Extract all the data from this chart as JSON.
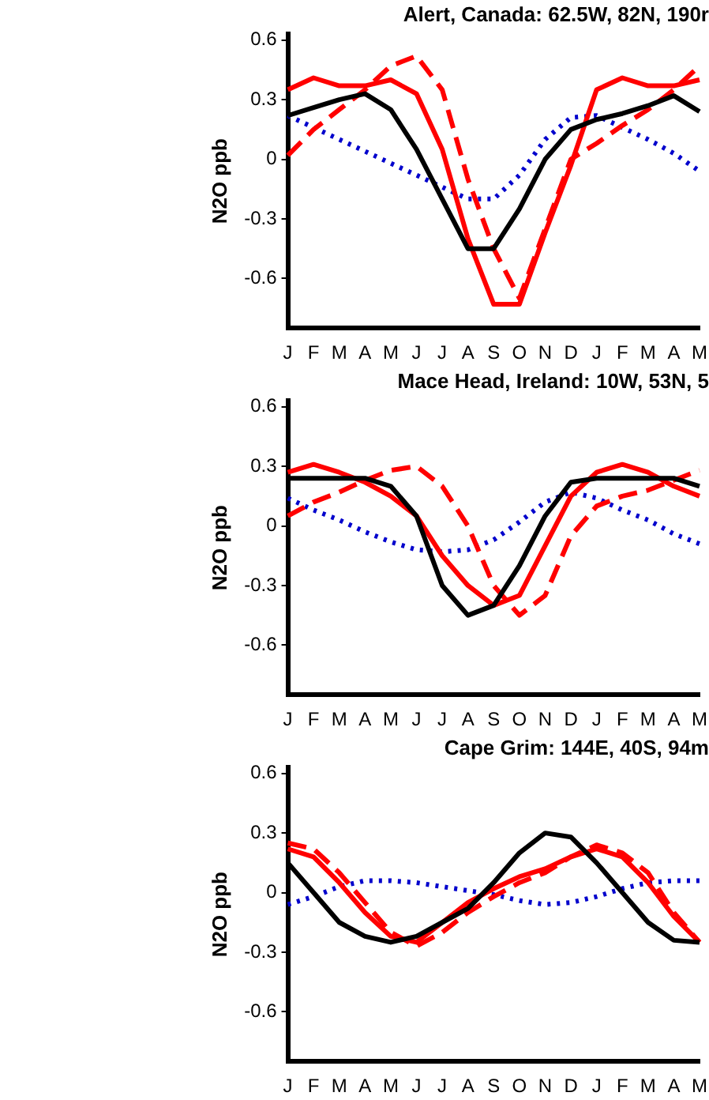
{
  "chart_data": [
    {
      "type": "line",
      "title": "Alert, Canada: 62.5W, 82N, 190r",
      "ylabel": "N2O ppb",
      "categories": [
        "J",
        "F",
        "M",
        "A",
        "M",
        "J",
        "J",
        "A",
        "S",
        "O",
        "N",
        "D",
        "J",
        "F",
        "M",
        "A",
        "M"
      ],
      "ylim": [
        -0.85,
        0.63
      ],
      "yticks": [
        0.6,
        0.3,
        0,
        -0.3,
        -0.6
      ],
      "grid": false,
      "legend": false,
      "marker": "none",
      "series": [
        {
          "color": "#000000",
          "line_style": "solid",
          "values": [
            0.22,
            0.26,
            0.3,
            0.33,
            0.25,
            0.05,
            -0.2,
            -0.45,
            -0.45,
            -0.25,
            0.0,
            0.15,
            0.2,
            0.23,
            0.27,
            0.32,
            0.24
          ]
        },
        {
          "color": "#ff0000",
          "line_style": "solid",
          "values": [
            0.35,
            0.41,
            0.37,
            0.37,
            0.4,
            0.33,
            0.05,
            -0.4,
            -0.73,
            -0.73,
            -0.37,
            -0.03,
            0.35,
            0.41,
            0.37,
            0.37,
            0.4
          ]
        },
        {
          "color": "#ff0000",
          "line_style": "dashed",
          "values": [
            0.02,
            0.15,
            0.25,
            0.35,
            0.47,
            0.52,
            0.35,
            -0.1,
            -0.45,
            -0.7,
            -0.35,
            0.0,
            0.08,
            0.17,
            0.25,
            0.35,
            0.47
          ]
        },
        {
          "color": "#0000cc",
          "line_style": "dotted",
          "values": [
            0.22,
            0.16,
            0.1,
            0.04,
            -0.02,
            -0.08,
            -0.14,
            -0.2,
            -0.2,
            -0.08,
            0.1,
            0.21,
            0.22,
            0.16,
            0.1,
            0.03,
            -0.06
          ]
        }
      ]
    },
    {
      "type": "line",
      "title": "Mace Head, Ireland: 10W, 53N, 5",
      "ylabel": "N2O ppb",
      "categories": [
        "J",
        "F",
        "M",
        "A",
        "M",
        "J",
        "J",
        "A",
        "S",
        "O",
        "N",
        "D",
        "J",
        "F",
        "M",
        "A",
        "M"
      ],
      "ylim": [
        -0.85,
        0.63
      ],
      "yticks": [
        0.6,
        0.3,
        0,
        -0.3,
        -0.6
      ],
      "grid": false,
      "legend": false,
      "marker": "none",
      "series": [
        {
          "color": "#000000",
          "line_style": "solid",
          "values": [
            0.24,
            0.24,
            0.24,
            0.24,
            0.2,
            0.05,
            -0.3,
            -0.45,
            -0.4,
            -0.2,
            0.05,
            0.22,
            0.24,
            0.24,
            0.24,
            0.24,
            0.2
          ]
        },
        {
          "color": "#ff0000",
          "line_style": "solid",
          "values": [
            0.27,
            0.31,
            0.27,
            0.22,
            0.15,
            0.05,
            -0.15,
            -0.3,
            -0.4,
            -0.35,
            -0.1,
            0.15,
            0.27,
            0.31,
            0.27,
            0.2,
            0.15
          ]
        },
        {
          "color": "#ff0000",
          "line_style": "dashed",
          "values": [
            0.05,
            0.12,
            0.17,
            0.23,
            0.28,
            0.3,
            0.2,
            0.0,
            -0.3,
            -0.45,
            -0.35,
            -0.05,
            0.1,
            0.15,
            0.18,
            0.23,
            0.28
          ]
        },
        {
          "color": "#0000cc",
          "line_style": "dotted",
          "values": [
            0.14,
            0.08,
            0.03,
            -0.03,
            -0.08,
            -0.12,
            -0.13,
            -0.12,
            -0.07,
            0.02,
            0.12,
            0.17,
            0.14,
            0.08,
            0.03,
            -0.04,
            -0.09
          ]
        }
      ]
    },
    {
      "type": "line",
      "title": "Cape Grim: 144E, 40S, 94m",
      "ylabel": "N2O ppb",
      "categories": [
        "J",
        "F",
        "M",
        "A",
        "M",
        "J",
        "J",
        "A",
        "S",
        "O",
        "N",
        "D",
        "J",
        "F",
        "M",
        "A",
        "M"
      ],
      "ylim": [
        -0.85,
        0.63
      ],
      "yticks": [
        0.6,
        0.3,
        0,
        -0.3,
        -0.6
      ],
      "grid": false,
      "legend": false,
      "marker": "none",
      "series": [
        {
          "color": "#000000",
          "line_style": "solid",
          "values": [
            0.15,
            0.0,
            -0.15,
            -0.22,
            -0.25,
            -0.22,
            -0.15,
            -0.08,
            0.05,
            0.2,
            0.3,
            0.28,
            0.15,
            0.0,
            -0.15,
            -0.24,
            -0.25
          ]
        },
        {
          "color": "#ff0000",
          "line_style": "solid",
          "values": [
            0.22,
            0.18,
            0.05,
            -0.1,
            -0.22,
            -0.25,
            -0.15,
            -0.05,
            0.02,
            0.08,
            0.12,
            0.18,
            0.22,
            0.18,
            0.05,
            -0.12,
            -0.25
          ]
        },
        {
          "color": "#ff0000",
          "line_style": "dashed",
          "values": [
            0.25,
            0.22,
            0.1,
            -0.05,
            -0.2,
            -0.27,
            -0.2,
            -0.1,
            -0.02,
            0.05,
            0.1,
            0.18,
            0.24,
            0.2,
            0.1,
            -0.1,
            -0.25
          ]
        },
        {
          "color": "#0000cc",
          "line_style": "dotted",
          "values": [
            -0.06,
            -0.02,
            0.03,
            0.06,
            0.06,
            0.05,
            0.03,
            0.01,
            -0.01,
            -0.04,
            -0.06,
            -0.05,
            -0.02,
            0.02,
            0.05,
            0.06,
            0.06
          ]
        }
      ]
    }
  ]
}
